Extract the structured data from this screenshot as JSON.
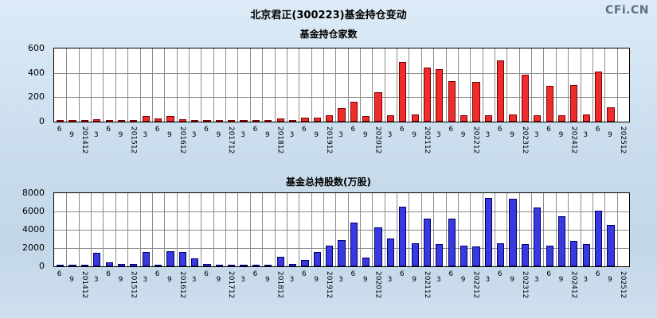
{
  "header": {
    "title": "北京君正(300223)基金持仓变动",
    "watermark": "CFi.CN"
  },
  "chart_data": [
    {
      "type": "bar",
      "title": "基金持仓家数",
      "categories": [
        "6",
        "9",
        "201412",
        "3",
        "6",
        "9",
        "201512",
        "3",
        "6",
        "9",
        "201612",
        "3",
        "6",
        "9",
        "201712",
        "3",
        "6",
        "9",
        "201812",
        "3",
        "6",
        "9",
        "201912",
        "3",
        "6",
        "9",
        "202012",
        "3",
        "6",
        "9",
        "202112",
        "3",
        "6",
        "9",
        "202212",
        "3",
        "6",
        "9",
        "202312",
        "3",
        "6",
        "9",
        "202412",
        "3",
        "6",
        "9",
        "202512"
      ],
      "values": [
        2,
        2,
        3,
        20,
        14,
        6,
        16,
        44,
        26,
        46,
        18,
        12,
        6,
        4,
        3,
        3,
        4,
        3,
        28,
        10,
        35,
        30,
        55,
        110,
        160,
        45,
        240,
        55,
        490,
        60,
        445,
        430,
        330,
        55,
        325,
        50,
        500,
        60,
        385,
        55,
        295,
        50,
        300,
        60,
        410,
        120,
        0
      ],
      "xlabel": "",
      "ylabel": "",
      "ylim": [
        0,
        600
      ],
      "yticks": [
        0,
        200,
        400,
        600
      ],
      "grid": true,
      "legend": "none",
      "bar_color": "#ee2c2c",
      "bar_border": "#7a0000"
    },
    {
      "type": "bar",
      "title": "基金总持股数(万股)",
      "categories": [
        "6",
        "9",
        "201412",
        "3",
        "6",
        "9",
        "201512",
        "3",
        "6",
        "9",
        "201612",
        "3",
        "6",
        "9",
        "201712",
        "3",
        "6",
        "9",
        "201812",
        "3",
        "6",
        "9",
        "201912",
        "3",
        "6",
        "9",
        "202012",
        "3",
        "6",
        "9",
        "202112",
        "3",
        "6",
        "9",
        "202212",
        "3",
        "6",
        "9",
        "202312",
        "3",
        "6",
        "9",
        "202412",
        "3",
        "6",
        "9",
        "202512"
      ],
      "values": [
        30,
        40,
        60,
        1500,
        400,
        250,
        300,
        1600,
        150,
        1650,
        1600,
        900,
        250,
        120,
        80,
        60,
        100,
        80,
        1050,
        300,
        700,
        1600,
        2300,
        2850,
        4800,
        950,
        4300,
        3050,
        6550,
        2500,
        5200,
        2400,
        5250,
        2300,
        2200,
        7450,
        2500,
        7400,
        2400,
        6400,
        2300,
        5500,
        2800,
        2400,
        6100,
        4500,
        0
      ],
      "xlabel": "",
      "ylabel": "",
      "ylim": [
        0,
        8000
      ],
      "yticks": [
        0,
        2000,
        4000,
        6000,
        8000
      ],
      "grid": true,
      "legend": "none",
      "bar_color": "#3939e0",
      "bar_border": "#00006a"
    }
  ]
}
